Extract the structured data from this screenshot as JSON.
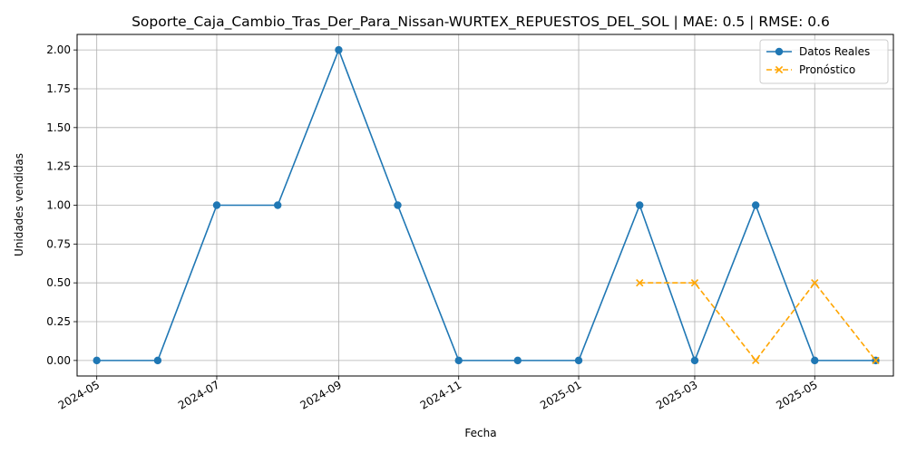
{
  "chart_data": {
    "type": "line",
    "title": "Soporte_Caja_Cambio_Tras_Der_Para_Nissan-WURTEX_REPUESTOS_DEL_SOL | MAE: 0.5 | RMSE: 0.6",
    "xlabel": "Fecha",
    "ylabel": "Unidades vendidas",
    "ylim": [
      -0.1,
      2.1
    ],
    "xlim": [
      "2024-04-21",
      "2025-06-10"
    ],
    "grid": true,
    "legend_position": "top-right",
    "x_ticks": [
      "2024-05",
      "2024-07",
      "2024-09",
      "2024-11",
      "2025-01",
      "2025-03",
      "2025-05"
    ],
    "y_ticks": [
      "0.00",
      "0.25",
      "0.50",
      "0.75",
      "1.00",
      "1.25",
      "1.50",
      "1.75",
      "2.00"
    ],
    "series": [
      {
        "name": "Datos Reales",
        "color": "#1f77b4",
        "marker": "circle",
        "line_style": "solid",
        "x": [
          "2024-05-01",
          "2024-06-01",
          "2024-07-01",
          "2024-08-01",
          "2024-09-01",
          "2024-10-01",
          "2024-11-01",
          "2024-12-01",
          "2025-01-01",
          "2025-02-01",
          "2025-03-01",
          "2025-04-01",
          "2025-05-01",
          "2025-06-01"
        ],
        "values": [
          0,
          0,
          1,
          1,
          2,
          1,
          0,
          0,
          0,
          1,
          0,
          1,
          0,
          0
        ]
      },
      {
        "name": "Pronóstico",
        "color": "#ffa500",
        "marker": "x",
        "line_style": "dashed",
        "x": [
          "2025-02-01",
          "2025-03-01",
          "2025-04-01",
          "2025-05-01",
          "2025-06-01"
        ],
        "values": [
          0.5,
          0.5,
          0,
          0.5,
          0
        ]
      }
    ]
  }
}
